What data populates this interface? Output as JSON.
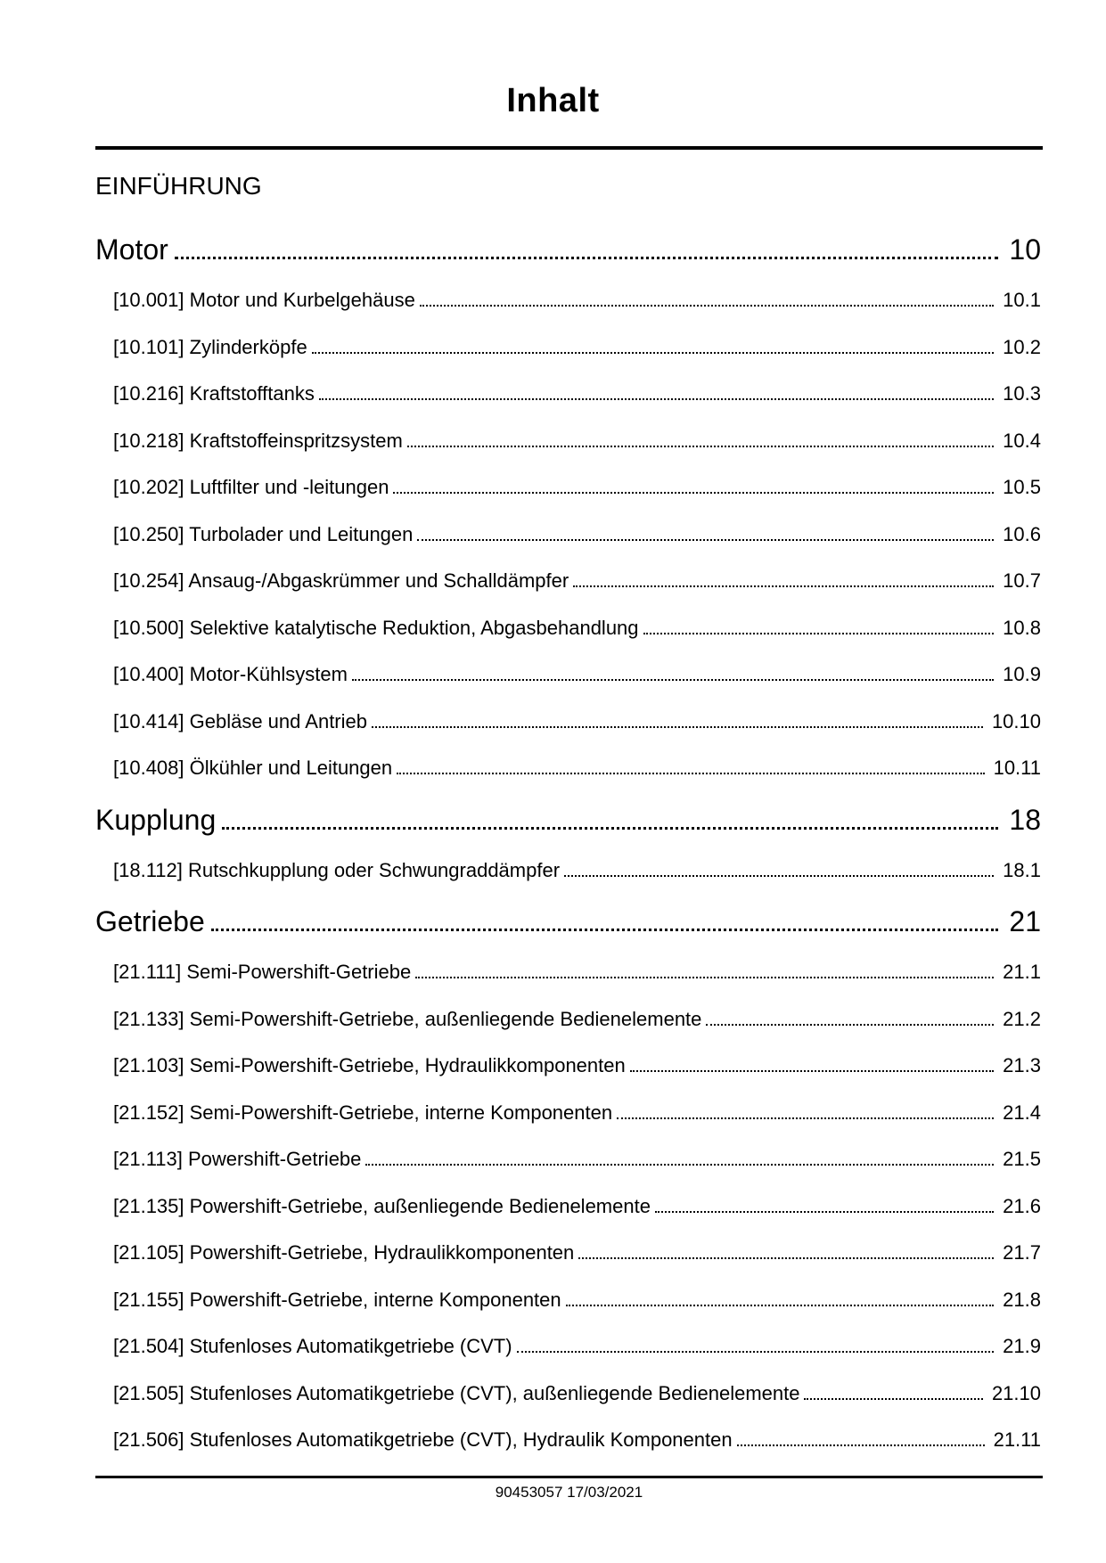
{
  "title": "Inhalt",
  "intro_heading": "EINFÜHRUNG",
  "sections": [
    {
      "label": "Motor",
      "page": "10",
      "entries": [
        {
          "label": "[10.001] Motor und Kurbelgehäuse",
          "page": "10.1"
        },
        {
          "label": "[10.101] Zylinderköpfe",
          "page": "10.2"
        },
        {
          "label": "[10.216] Kraftstofftanks",
          "page": "10.3"
        },
        {
          "label": "[10.218] Kraftstoffeinspritzsystem",
          "page": "10.4"
        },
        {
          "label": "[10.202] Luftfilter und -leitungen",
          "page": "10.5"
        },
        {
          "label": "[10.250] Turbolader und Leitungen",
          "page": "10.6"
        },
        {
          "label": "[10.254] Ansaug-/Abgaskrümmer und Schalldämpfer",
          "page": "10.7"
        },
        {
          "label": "[10.500] Selektive katalytische Reduktion, Abgasbehandlung",
          "page": "10.8"
        },
        {
          "label": "[10.400] Motor-Kühlsystem",
          "page": "10.9"
        },
        {
          "label": "[10.414] Gebläse und Antrieb",
          "page": "10.10"
        },
        {
          "label": "[10.408] Ölkühler und Leitungen",
          "page": "10.11"
        }
      ]
    },
    {
      "label": "Kupplung",
      "page": "18",
      "entries": [
        {
          "label": "[18.112] Rutschkupplung oder Schwungraddämpfer",
          "page": "18.1"
        }
      ]
    },
    {
      "label": "Getriebe",
      "page": "21",
      "entries": [
        {
          "label": "[21.111] Semi-Powershift-Getriebe",
          "page": "21.1"
        },
        {
          "label": "[21.133] Semi-Powershift-Getriebe, außenliegende Bedienelemente",
          "page": "21.2"
        },
        {
          "label": "[21.103] Semi-Powershift-Getriebe, Hydraulikkomponenten",
          "page": "21.3"
        },
        {
          "label": "[21.152] Semi-Powershift-Getriebe, interne Komponenten",
          "page": "21.4"
        },
        {
          "label": "[21.113] Powershift-Getriebe",
          "page": "21.5"
        },
        {
          "label": "[21.135] Powershift-Getriebe, außenliegende Bedienelemente",
          "page": "21.6"
        },
        {
          "label": "[21.105] Powershift-Getriebe, Hydraulikkomponenten",
          "page": "21.7"
        },
        {
          "label": "[21.155] Powershift-Getriebe, interne Komponenten",
          "page": "21.8"
        },
        {
          "label": "[21.504] Stufenloses Automatikgetriebe (CVT)",
          "page": "21.9"
        },
        {
          "label": "[21.505] Stufenloses Automatikgetriebe (CVT), außenliegende Bedienelemente",
          "page": "21.10"
        },
        {
          "label": "[21.506] Stufenloses Automatikgetriebe (CVT), Hydraulik Komponenten",
          "page": "21.11"
        }
      ]
    }
  ],
  "footer": {
    "text": "90453057 17/03/2021"
  }
}
